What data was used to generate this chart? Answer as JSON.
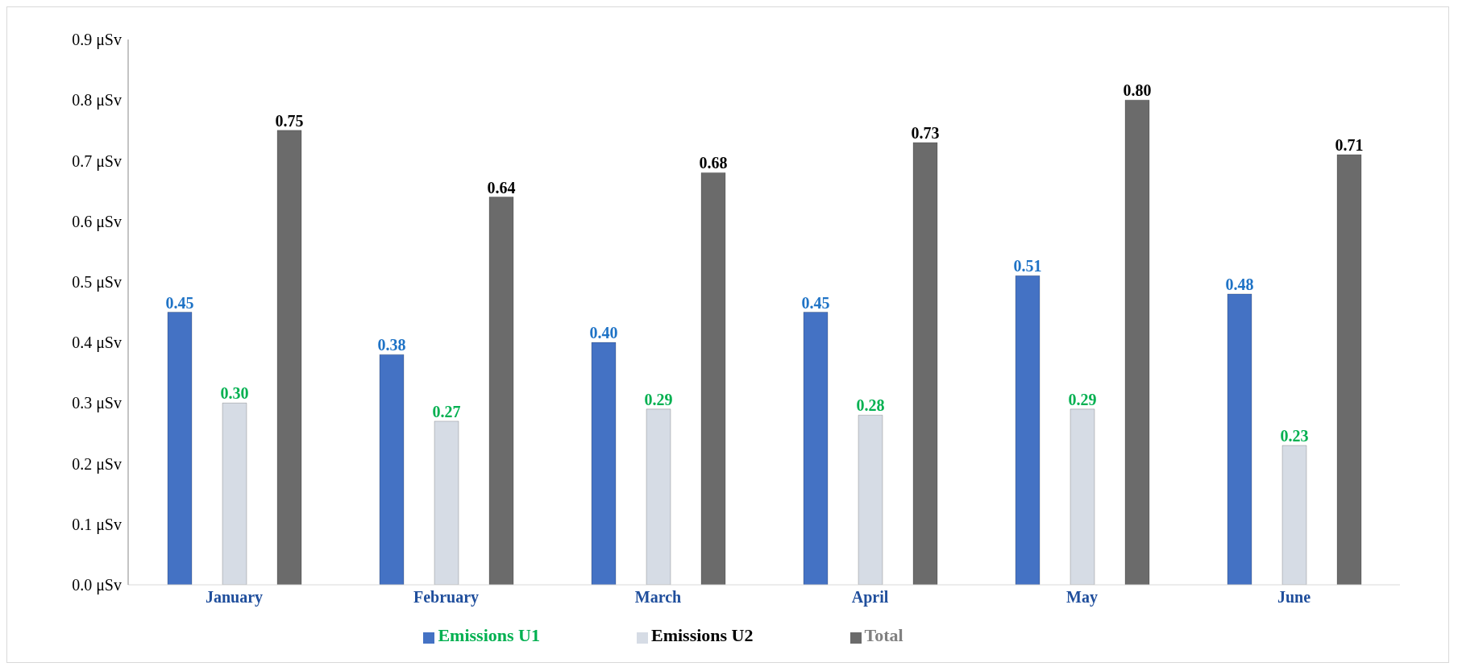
{
  "chart_data": {
    "type": "bar",
    "categories": [
      "January",
      "February",
      "March",
      "April",
      "May",
      "June"
    ],
    "series": [
      {
        "name": "Emissions U1",
        "color": "#4472c4",
        "values": [
          0.45,
          0.38,
          0.4,
          0.45,
          0.51,
          0.48
        ],
        "value_labels": [
          "0.45",
          "0.38",
          "0.40",
          "0.45",
          "0.51",
          "0.48"
        ]
      },
      {
        "name": "Emissions U2",
        "color": "#d6dce5",
        "values": [
          0.3,
          0.27,
          0.29,
          0.28,
          0.29,
          0.23
        ],
        "value_labels": [
          "0.30",
          "0.27",
          "0.29",
          "0.28",
          "0.29",
          "0.23"
        ]
      },
      {
        "name": "Total",
        "color": "#6b6b6b",
        "values": [
          0.75,
          0.64,
          0.68,
          0.73,
          0.8,
          0.71
        ],
        "value_labels": [
          "0.75",
          "0.64",
          "0.68",
          "0.73",
          "0.80",
          "0.71"
        ]
      }
    ],
    "ylim": [
      0,
      0.9
    ],
    "yticks": [
      {
        "value": 0,
        "label": "0.0 μSv"
      },
      {
        "value": 0.1,
        "label": "0.1 μSv"
      },
      {
        "value": 0.2,
        "label": "0.2 μSv"
      },
      {
        "value": 0.3,
        "label": "0.3 μSv"
      },
      {
        "value": 0.4,
        "label": "0.4 μSv"
      },
      {
        "value": 0.5,
        "label": "0.5 μSv"
      },
      {
        "value": 0.6,
        "label": "0.6 μSv"
      },
      {
        "value": 0.7,
        "label": "0.7 μSv"
      },
      {
        "value": 0.8,
        "label": "0.8 μSv"
      },
      {
        "value": 0.9,
        "label": "0.9 μSv"
      }
    ],
    "grid": false,
    "legend": "bottom"
  }
}
